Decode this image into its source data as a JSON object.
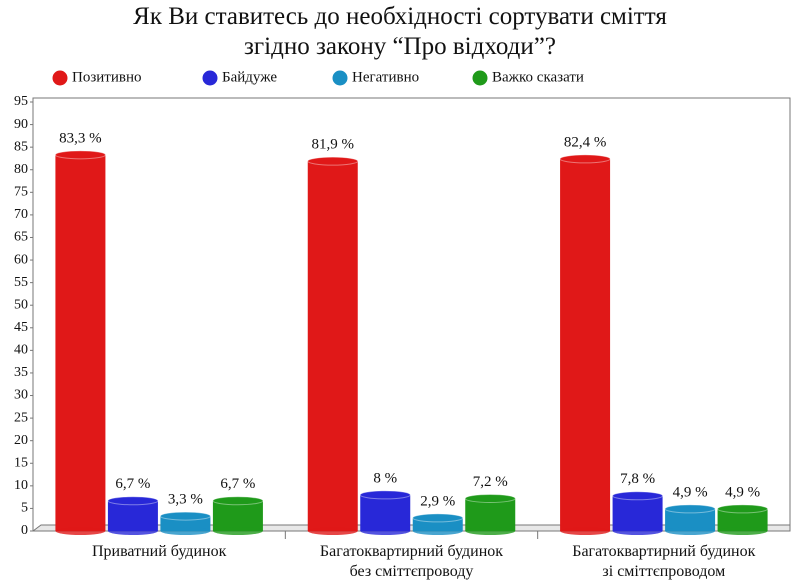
{
  "chart_data": {
    "type": "bar",
    "title": "Як Ви ставитесь до необхідності сортувати сміття\nзгідно закону “Про відходи”?",
    "categories": [
      "Приватний будинок",
      "Багатоквартирний будинок\nбез сміттєпроводу",
      "Багатоквартирний будинок\nзі сміттєпроводом"
    ],
    "series": [
      {
        "name": "Позитивно",
        "color": "#e01818",
        "values": [
          83.3,
          81.9,
          82.4
        ],
        "value_labels": [
          "83,3 %",
          "81,9 %",
          "82,4 %"
        ]
      },
      {
        "name": "Байдуже",
        "color": "#2828d8",
        "values": [
          6.7,
          8,
          7.8
        ],
        "value_labels": [
          "6,7 %",
          "8 %",
          "7,8 %"
        ]
      },
      {
        "name": "Негативно",
        "color": "#1a8fc4",
        "values": [
          3.3,
          2.9,
          4.9
        ],
        "value_labels": [
          "3,3 %",
          "2,9 %",
          "4,9 %"
        ]
      },
      {
        "name": "Важко сказати",
        "color": "#1f9a1a",
        "values": [
          6.7,
          7.2,
          4.9
        ],
        "value_labels": [
          "6,7 %",
          "7,2 %",
          "4,9 %"
        ]
      }
    ],
    "ylim": [
      0,
      95
    ],
    "yticks": [
      0,
      5,
      10,
      15,
      20,
      25,
      30,
      35,
      40,
      45,
      50,
      55,
      60,
      65,
      70,
      75,
      80,
      85,
      90,
      95
    ],
    "grid": false,
    "legend": "top"
  }
}
